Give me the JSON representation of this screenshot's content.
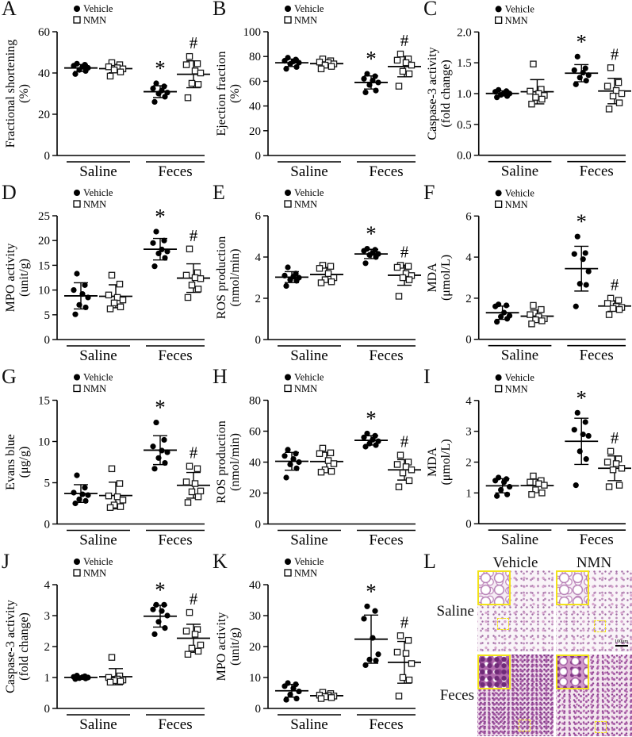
{
  "legend": {
    "items": [
      {
        "label": "Vehicle",
        "marker": "filled-circle"
      },
      {
        "label": "NMN",
        "marker": "open-square"
      }
    ]
  },
  "chart_data": [
    {
      "letter": "A",
      "type": "scatter",
      "ylabel": [
        "Fractional shortening",
        "(%)"
      ],
      "ylim": [
        0,
        60
      ],
      "yticks": [
        "0",
        "20",
        "40",
        "60"
      ],
      "categories": [
        "Saline",
        "Feces"
      ],
      "series": [
        "Vehicle",
        "NMN"
      ],
      "groups": [
        {
          "category": "Saline",
          "series": "Vehicle",
          "values": [
            44.5,
            44,
            43.5,
            43,
            42.5,
            41.5,
            41,
            39.5
          ]
        },
        {
          "category": "Saline",
          "series": "NMN",
          "values": [
            45,
            44,
            43,
            42.5,
            42,
            41.5,
            40.5,
            38.5
          ]
        },
        {
          "category": "Feces",
          "series": "Vehicle",
          "values": [
            35,
            33.5,
            32.5,
            31.5,
            30.5,
            30,
            28.5,
            26
          ]
        },
        {
          "category": "Feces",
          "series": "NMN",
          "values": [
            48,
            44.5,
            44,
            41,
            40,
            35,
            34.5,
            28
          ]
        }
      ],
      "sig": [
        {
          "category": "Feces",
          "series": "Vehicle",
          "symbol": "*"
        },
        {
          "category": "Feces",
          "series": "NMN",
          "symbol": "#"
        }
      ]
    },
    {
      "letter": "B",
      "type": "scatter",
      "ylabel": [
        "Ejection fraction",
        "(%)"
      ],
      "ylim": [
        0,
        100
      ],
      "yticks": [
        "0",
        "20",
        "40",
        "60",
        "80",
        "100"
      ],
      "categories": [
        "Saline",
        "Feces"
      ],
      "series": [
        "Vehicle",
        "NMN"
      ],
      "groups": [
        {
          "category": "Saline",
          "series": "Vehicle",
          "values": [
            79,
            77.5,
            76.5,
            76,
            75,
            74,
            71.5,
            70
          ]
        },
        {
          "category": "Saline",
          "series": "NMN",
          "values": [
            78,
            76.5,
            75.5,
            75,
            74,
            73,
            72,
            70
          ]
        },
        {
          "category": "Feces",
          "series": "Vehicle",
          "values": [
            66,
            64,
            62,
            60.5,
            59,
            57,
            52.5,
            51
          ]
        },
        {
          "category": "Feces",
          "series": "NMN",
          "values": [
            82,
            78,
            77,
            75,
            73,
            68,
            66,
            56
          ]
        }
      ],
      "sig": [
        {
          "category": "Feces",
          "series": "Vehicle",
          "symbol": "*"
        },
        {
          "category": "Feces",
          "series": "NMN",
          "symbol": "#"
        }
      ]
    },
    {
      "letter": "C",
      "type": "scatter",
      "ylabel": [
        "Caspase-3 activity",
        "(fold change)"
      ],
      "ylim": [
        0,
        2
      ],
      "yticks": [
        "0.0",
        "0.5",
        "1.0",
        "1.5",
        "2.0"
      ],
      "categories": [
        "Saline",
        "Feces"
      ],
      "series": [
        "Vehicle",
        "NMN"
      ],
      "groups": [
        {
          "category": "Saline",
          "series": "Vehicle",
          "values": [
            1.06,
            1.04,
            1.03,
            1.01,
            1.0,
            0.98,
            0.96,
            0.94
          ]
        },
        {
          "category": "Saline",
          "series": "NMN",
          "values": [
            1.48,
            1.07,
            1.04,
            1.0,
            0.97,
            0.94,
            0.91,
            0.83
          ]
        },
        {
          "category": "Feces",
          "series": "Vehicle",
          "values": [
            1.6,
            1.41,
            1.38,
            1.34,
            1.3,
            1.26,
            1.21,
            1.15
          ]
        },
        {
          "category": "Feces",
          "series": "NMN",
          "values": [
            1.42,
            1.18,
            1.12,
            1.05,
            1.0,
            0.96,
            0.85,
            0.75
          ]
        }
      ],
      "sig": [
        {
          "category": "Feces",
          "series": "Vehicle",
          "symbol": "*"
        },
        {
          "category": "Feces",
          "series": "NMN",
          "symbol": "#"
        }
      ]
    },
    {
      "letter": "D",
      "type": "scatter",
      "ylabel": [
        "MPO activity",
        "(unit/g)"
      ],
      "ylim": [
        0,
        25
      ],
      "yticks": [
        "0",
        "5",
        "10",
        "15",
        "20",
        "25"
      ],
      "categories": [
        "Saline",
        "Feces"
      ],
      "series": [
        "Vehicle",
        "NMN"
      ],
      "groups": [
        {
          "category": "Saline",
          "series": "Vehicle",
          "values": [
            13.3,
            11.0,
            10.0,
            9.2,
            8.5,
            7.0,
            6.5,
            5.1
          ]
        },
        {
          "category": "Saline",
          "series": "NMN",
          "values": [
            13.0,
            11.2,
            9.0,
            8.5,
            8.0,
            7.4,
            6.6,
            6.2
          ]
        },
        {
          "category": "Feces",
          "series": "Vehicle",
          "values": [
            21.8,
            20.0,
            19.5,
            18.2,
            17.8,
            17.4,
            16.5,
            14.8
          ]
        },
        {
          "category": "Feces",
          "series": "NMN",
          "values": [
            18.3,
            13.5,
            13.0,
            12.5,
            12.3,
            11.0,
            10.2,
            8.5
          ]
        }
      ],
      "sig": [
        {
          "category": "Feces",
          "series": "Vehicle",
          "symbol": "*"
        },
        {
          "category": "Feces",
          "series": "NMN",
          "symbol": "#"
        }
      ]
    },
    {
      "letter": "E",
      "type": "scatter",
      "ylabel": [
        "ROS production",
        "(nmol/min)"
      ],
      "ylim": [
        0,
        6
      ],
      "yticks": [
        "0",
        "2",
        "4",
        "6"
      ],
      "categories": [
        "Saline",
        "Feces"
      ],
      "series": [
        "Vehicle",
        "NMN"
      ],
      "groups": [
        {
          "category": "Saline",
          "series": "Vehicle",
          "values": [
            3.5,
            3.2,
            3.1,
            3.05,
            3.0,
            2.9,
            2.85,
            2.6
          ]
        },
        {
          "category": "Saline",
          "series": "NMN",
          "values": [
            3.6,
            3.55,
            3.45,
            3.2,
            3.0,
            2.9,
            2.8,
            2.75
          ]
        },
        {
          "category": "Feces",
          "series": "Vehicle",
          "values": [
            4.4,
            4.35,
            4.3,
            4.2,
            4.15,
            4.1,
            4.0,
            3.7
          ]
        },
        {
          "category": "Feces",
          "series": "NMN",
          "values": [
            3.6,
            3.55,
            3.5,
            3.2,
            3.1,
            3.0,
            2.9,
            2.1
          ]
        }
      ],
      "sig": [
        {
          "category": "Feces",
          "series": "Vehicle",
          "symbol": "*"
        },
        {
          "category": "Feces",
          "series": "NMN",
          "symbol": "#"
        }
      ]
    },
    {
      "letter": "F",
      "type": "scatter",
      "ylabel": [
        "MDA",
        "(μmol/L)"
      ],
      "ylim": [
        0,
        6
      ],
      "yticks": [
        "0",
        "2",
        "4",
        "6"
      ],
      "categories": [
        "Saline",
        "Feces"
      ],
      "series": [
        "Vehicle",
        "NMN"
      ],
      "groups": [
        {
          "category": "Saline",
          "series": "Vehicle",
          "values": [
            1.7,
            1.65,
            1.6,
            1.3,
            1.15,
            1.1,
            1.0,
            0.85
          ]
        },
        {
          "category": "Saline",
          "series": "NMN",
          "values": [
            1.65,
            1.45,
            1.2,
            1.1,
            1.0,
            0.95,
            0.9,
            0.75
          ]
        },
        {
          "category": "Feces",
          "series": "Vehicle",
          "values": [
            5.0,
            4.2,
            4.15,
            3.9,
            3.3,
            2.7,
            2.65,
            1.6
          ]
        },
        {
          "category": "Feces",
          "series": "NMN",
          "values": [
            2.0,
            1.9,
            1.75,
            1.6,
            1.55,
            1.5,
            1.45,
            1.2
          ]
        }
      ],
      "sig": [
        {
          "category": "Feces",
          "series": "Vehicle",
          "symbol": "*"
        },
        {
          "category": "Feces",
          "series": "NMN",
          "symbol": "#"
        }
      ]
    },
    {
      "letter": "G",
      "type": "scatter",
      "ylabel": [
        "Evans blue",
        "(μg/g)"
      ],
      "ylim": [
        0,
        15
      ],
      "yticks": [
        "0",
        "5",
        "10",
        "15"
      ],
      "categories": [
        "Saline",
        "Feces"
      ],
      "series": [
        "Vehicle",
        "NMN"
      ],
      "groups": [
        {
          "category": "Saline",
          "series": "Vehicle",
          "values": [
            5.9,
            4.4,
            3.8,
            3.6,
            3.5,
            3.0,
            2.8,
            2.5
          ]
        },
        {
          "category": "Saline",
          "series": "NMN",
          "values": [
            6.7,
            4.9,
            3.4,
            3.3,
            2.9,
            2.3,
            2.1,
            2.0
          ]
        },
        {
          "category": "Feces",
          "series": "Vehicle",
          "values": [
            12.3,
            10.2,
            9.4,
            8.9,
            8.7,
            8.0,
            7.4,
            6.7
          ]
        },
        {
          "category": "Feces",
          "series": "NMN",
          "values": [
            7.0,
            6.7,
            5.1,
            4.9,
            4.0,
            3.9,
            3.3,
            2.6
          ]
        }
      ],
      "sig": [
        {
          "category": "Feces",
          "series": "Vehicle",
          "symbol": "*"
        },
        {
          "category": "Feces",
          "series": "NMN",
          "symbol": "#"
        }
      ]
    },
    {
      "letter": "H",
      "type": "scatter",
      "ylabel": [
        "ROS production",
        "(nmol/min)"
      ],
      "ylim": [
        0,
        80
      ],
      "yticks": [
        "0",
        "20",
        "40",
        "60",
        "80"
      ],
      "categories": [
        "Saline",
        "Feces"
      ],
      "series": [
        "Vehicle",
        "NMN"
      ],
      "groups": [
        {
          "category": "Saline",
          "series": "Vehicle",
          "values": [
            48,
            45.5,
            44,
            42,
            40,
            38.5,
            36,
            30
          ]
        },
        {
          "category": "Saline",
          "series": "NMN",
          "values": [
            49,
            46,
            45.5,
            41,
            39,
            35,
            34,
            33.5
          ]
        },
        {
          "category": "Feces",
          "series": "Vehicle",
          "values": [
            58.5,
            57,
            56,
            54.5,
            53.5,
            52,
            51,
            50
          ]
        },
        {
          "category": "Feces",
          "series": "NMN",
          "values": [
            44.5,
            40,
            38.5,
            37,
            35,
            33,
            28,
            24
          ]
        }
      ],
      "sig": [
        {
          "category": "Feces",
          "series": "Vehicle",
          "symbol": "*"
        },
        {
          "category": "Feces",
          "series": "NMN",
          "symbol": "#"
        }
      ]
    },
    {
      "letter": "I",
      "type": "scatter",
      "ylabel": [
        "MDA",
        "(μmol/L)"
      ],
      "ylim": [
        0,
        4
      ],
      "yticks": [
        "0",
        "1",
        "2",
        "3",
        "4"
      ],
      "categories": [
        "Saline",
        "Feces"
      ],
      "series": [
        "Vehicle",
        "NMN"
      ],
      "groups": [
        {
          "category": "Saline",
          "series": "Vehicle",
          "values": [
            1.5,
            1.45,
            1.4,
            1.35,
            1.2,
            1.1,
            0.95,
            0.9
          ]
        },
        {
          "category": "Saline",
          "series": "NMN",
          "values": [
            1.55,
            1.4,
            1.35,
            1.3,
            1.25,
            1.1,
            1.0,
            0.95
          ]
        },
        {
          "category": "Feces",
          "series": "Vehicle",
          "values": [
            3.6,
            3.3,
            3.05,
            2.9,
            2.85,
            2.35,
            2.1,
            1.25
          ]
        },
        {
          "category": "Feces",
          "series": "NMN",
          "values": [
            2.35,
            2.1,
            2.0,
            1.95,
            1.8,
            1.75,
            1.25,
            1.2
          ]
        }
      ],
      "sig": [
        {
          "category": "Feces",
          "series": "Vehicle",
          "symbol": "*"
        },
        {
          "category": "Feces",
          "series": "NMN",
          "symbol": "#"
        }
      ]
    },
    {
      "letter": "J",
      "type": "scatter",
      "ylabel": [
        "Caspase-3 activity",
        "(fold change)"
      ],
      "ylim": [
        0,
        4
      ],
      "yticks": [
        "0",
        "1",
        "2",
        "3",
        "4"
      ],
      "categories": [
        "Saline",
        "Feces"
      ],
      "series": [
        "Vehicle",
        "NMN"
      ],
      "groups": [
        {
          "category": "Saline",
          "series": "Vehicle",
          "values": [
            1.06,
            1.04,
            1.02,
            1.01,
            1.0,
            0.98,
            0.97,
            0.95
          ]
        },
        {
          "category": "Saline",
          "series": "NMN",
          "values": [
            1.65,
            1.05,
            1.0,
            0.95,
            0.92,
            0.9,
            0.88,
            0.85
          ]
        },
        {
          "category": "Feces",
          "series": "Vehicle",
          "values": [
            3.35,
            3.35,
            3.2,
            3.15,
            3.0,
            2.8,
            2.6,
            2.4
          ]
        },
        {
          "category": "Feces",
          "series": "NMN",
          "values": [
            3.1,
            2.55,
            2.5,
            2.4,
            2.05,
            1.95,
            1.85,
            1.75
          ]
        }
      ],
      "sig": [
        {
          "category": "Feces",
          "series": "Vehicle",
          "symbol": "*"
        },
        {
          "category": "Feces",
          "series": "NMN",
          "symbol": "#"
        }
      ]
    },
    {
      "letter": "K",
      "type": "scatter",
      "ylabel": [
        "MPO activity",
        "(unit/g)"
      ],
      "ylim": [
        0,
        40
      ],
      "yticks": [
        "0",
        "10",
        "20",
        "30",
        "40"
      ],
      "categories": [
        "Saline",
        "Feces"
      ],
      "series": [
        "Vehicle",
        "NMN"
      ],
      "groups": [
        {
          "category": "Saline",
          "series": "Vehicle",
          "values": [
            8.2,
            7.8,
            7.2,
            6.5,
            5.5,
            4.5,
            3.2,
            2.8
          ]
        },
        {
          "category": "Saline",
          "series": "NMN",
          "values": [
            5.2,
            4.8,
            4.3,
            4.2,
            4.0,
            3.8,
            3.5,
            3.2
          ]
        },
        {
          "category": "Feces",
          "series": "Vehicle",
          "values": [
            33,
            31.5,
            29,
            22.8,
            17.5,
            15.8,
            15.5,
            14
          ]
        },
        {
          "category": "Feces",
          "series": "NMN",
          "values": [
            23.5,
            22,
            18.2,
            17.8,
            14.5,
            10,
            9.2,
            4
          ]
        }
      ],
      "sig": [
        {
          "category": "Feces",
          "series": "Vehicle",
          "symbol": "*"
        },
        {
          "category": "Feces",
          "series": "NMN",
          "symbol": "#"
        }
      ]
    }
  ],
  "histology": {
    "letter": "L",
    "col_labels": [
      "Vehicle",
      "NMN"
    ],
    "row_labels": [
      "Saline",
      "Feces"
    ],
    "scale_bar_label": "100μm"
  }
}
